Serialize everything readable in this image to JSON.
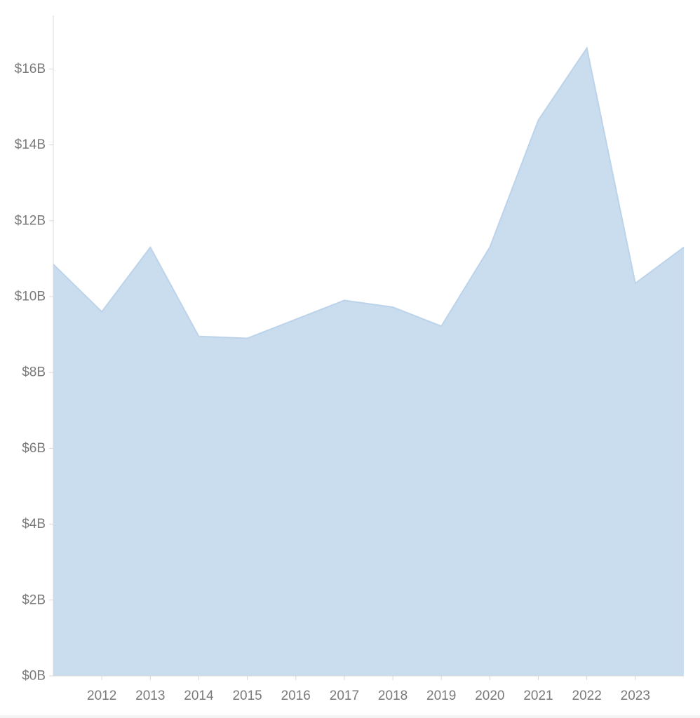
{
  "chart_data": {
    "type": "area",
    "title": "",
    "xlabel": "",
    "ylabel": "",
    "x": [
      2011,
      2012,
      2013,
      2014,
      2015,
      2016,
      2017,
      2018,
      2019,
      2020,
      2021,
      2022,
      2023,
      2024
    ],
    "x_tick_labels": [
      "2012",
      "2013",
      "2014",
      "2015",
      "2016",
      "2017",
      "2018",
      "2019",
      "2020",
      "2021",
      "2022",
      "2023"
    ],
    "values": [
      10.85,
      9.6,
      11.3,
      8.95,
      8.9,
      9.4,
      9.9,
      9.72,
      9.22,
      11.3,
      14.65,
      16.55,
      10.35,
      11.3
    ],
    "unit": "billions USD",
    "ylim": [
      0,
      17.5
    ],
    "y_ticks": [
      0,
      2,
      4,
      6,
      8,
      10,
      12,
      14,
      16
    ],
    "y_tick_labels": [
      "$0B",
      "$2B",
      "$4B",
      "$6B",
      "$8B",
      "$10B",
      "$12B",
      "$14B",
      "$16B"
    ],
    "grid": false,
    "legend": "none",
    "colors": {
      "fill": "#c9ddef",
      "stroke": "#bcd3ea",
      "axis": "#d9d9d9",
      "tick_text": "#7a7a7a"
    }
  }
}
